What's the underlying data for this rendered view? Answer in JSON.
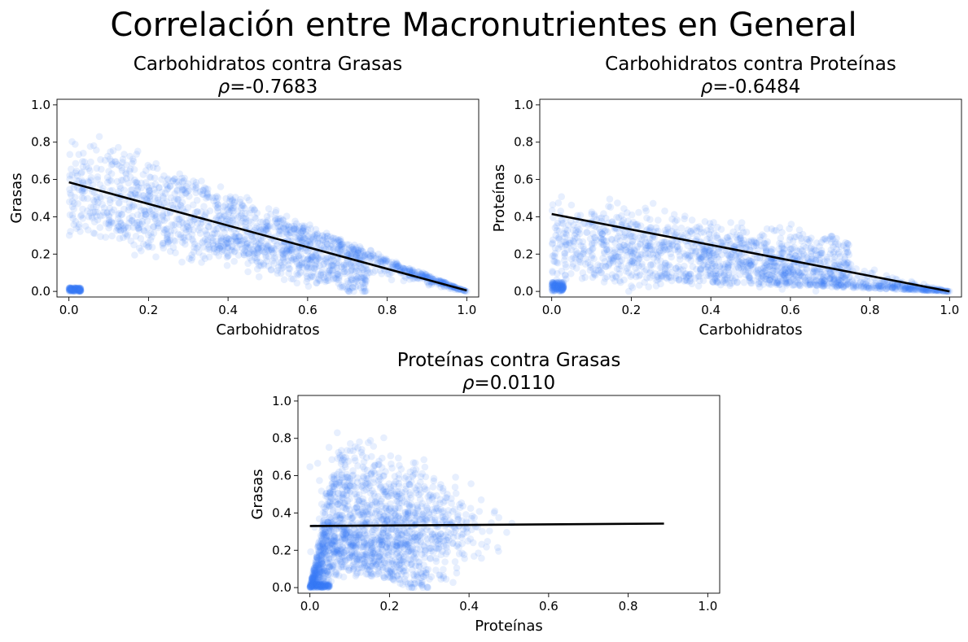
{
  "suptitle": "Correlación entre Macronutrientes en General",
  "colors": {
    "points": "#3c7ef5",
    "fit_line": "#000000"
  },
  "chart_data": [
    {
      "type": "scatter",
      "title": "Carbohidratos contra Grasas",
      "rho_symbol": "ρ",
      "rho_value": "=-0.7683",
      "xlabel": "Carbohidratos",
      "ylabel": "Grasas",
      "xlim": [
        -0.03,
        1.03
      ],
      "ylim": [
        -0.03,
        1.03
      ],
      "xticks": [
        "0.0",
        "0.2",
        "0.4",
        "0.6",
        "0.8",
        "1.0"
      ],
      "yticks": [
        "0.0",
        "0.2",
        "0.4",
        "0.6",
        "0.8",
        "1.0"
      ],
      "regression": {
        "x": [
          0.0,
          1.0
        ],
        "y": [
          0.585,
          0.005
        ]
      },
      "point_cloud": {
        "n": 1800,
        "x_var": "carb",
        "y_var": "fat",
        "fill_opacity": 0.12
      },
      "grid": false,
      "legend": "none"
    },
    {
      "type": "scatter",
      "title": "Carbohidratos contra Proteínas",
      "rho_symbol": "ρ",
      "rho_value": "=-0.6484",
      "xlabel": "Carbohidratos",
      "ylabel": "Proteínas",
      "xlim": [
        -0.03,
        1.03
      ],
      "ylim": [
        -0.03,
        1.03
      ],
      "xticks": [
        "0.0",
        "0.2",
        "0.4",
        "0.6",
        "0.8",
        "1.0"
      ],
      "yticks": [
        "0.0",
        "0.2",
        "0.4",
        "0.6",
        "0.8",
        "1.0"
      ],
      "regression": {
        "x": [
          0.0,
          1.0
        ],
        "y": [
          0.415,
          0.0
        ]
      },
      "point_cloud": {
        "n": 1800,
        "x_var": "carb",
        "y_var": "prot",
        "fill_opacity": 0.12
      },
      "grid": false,
      "legend": "none"
    },
    {
      "type": "scatter",
      "title": "Proteínas contra Grasas",
      "rho_symbol": "ρ",
      "rho_value": "=0.0110",
      "xlabel": "Proteínas",
      "ylabel": "Grasas",
      "xlim": [
        -0.03,
        1.03
      ],
      "ylim": [
        -0.03,
        1.03
      ],
      "xticks": [
        "0.0",
        "0.2",
        "0.4",
        "0.6",
        "0.8",
        "1.0"
      ],
      "yticks": [
        "0.0",
        "0.2",
        "0.4",
        "0.6",
        "0.8",
        "1.0"
      ],
      "regression": {
        "x": [
          0.0,
          0.89
        ],
        "y": [
          0.33,
          0.343
        ]
      },
      "point_cloud": {
        "n": 1800,
        "x_var": "prot",
        "y_var": "fat",
        "fill_opacity": 0.12
      },
      "grid": false,
      "legend": "none"
    }
  ]
}
